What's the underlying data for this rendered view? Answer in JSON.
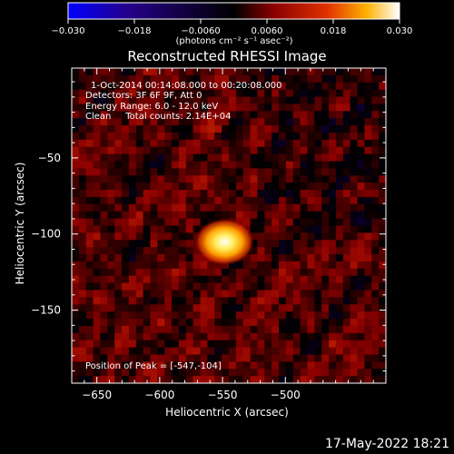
{
  "chart_data": {
    "type": "heatmap",
    "title": "Reconstructed RHESSI Image",
    "xlabel": "Heliocentric X (arcsec)",
    "ylabel": "Heliocentric Y (arcsec)",
    "xlim": [
      -670,
      -420
    ],
    "ylim": [
      -198,
      9
    ],
    "x_ticks": [
      -650,
      -600,
      -550,
      -500
    ],
    "y_ticks": [
      -50,
      -100,
      -150
    ],
    "x_tick_labels": [
      "−650",
      "−600",
      "−550",
      "−500"
    ],
    "y_tick_labels": [
      "−50",
      "−100",
      "−150"
    ],
    "colorbar": {
      "range": [
        -0.03,
        0.03
      ],
      "ticks": [
        -0.03,
        -0.018,
        -0.006,
        0.006,
        0.018,
        0.03
      ],
      "tick_labels": [
        "−0.030",
        "−0.018",
        "−0.0060",
        "0.0060",
        "0.018",
        "0.030"
      ],
      "unit_label": "(photons cm⁻² s⁻¹ asec⁻²)",
      "colors": [
        "#0000ff",
        "#26008a",
        "#000000",
        "#8a0000",
        "#e03000",
        "#ffb000",
        "#ffffff"
      ]
    },
    "annotations": [
      "1-Oct-2014 00:14:08.000 to 00:20:08.000",
      "Detectors: 3F 6F 9F, Att 0",
      "Energy Range: 6.0 - 12.0 keV",
      "Clean     Total counts: 2.14E+04"
    ],
    "peak_label": "Position of Peak = [-547,-104]",
    "peak": {
      "x": -547,
      "y": -104,
      "value": 0.03
    },
    "background_level": 0.004
  },
  "footer": {
    "timestamp": "17-May-2022 18:21"
  }
}
